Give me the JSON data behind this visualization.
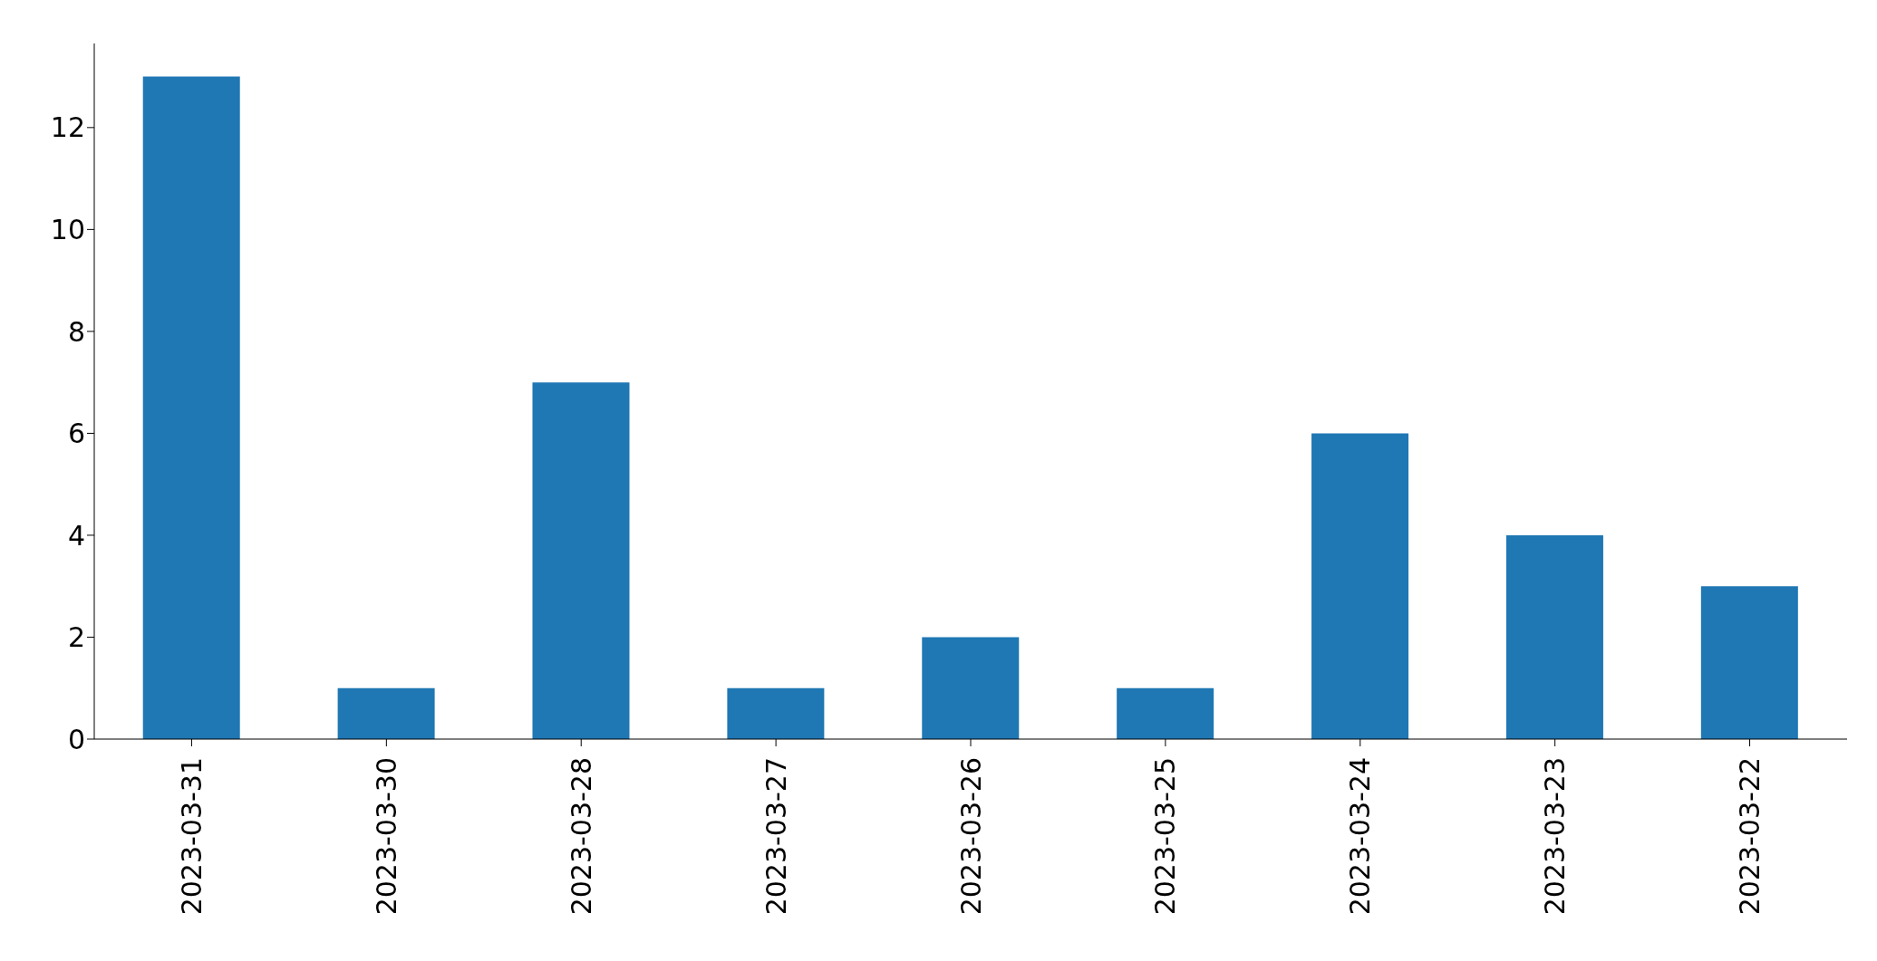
{
  "chart_data": {
    "type": "bar",
    "categories": [
      "2023-03-31",
      "2023-03-30",
      "2023-03-28",
      "2023-03-27",
      "2023-03-26",
      "2023-03-25",
      "2023-03-24",
      "2023-03-23",
      "2023-03-22"
    ],
    "values": [
      13,
      1,
      7,
      1,
      2,
      1,
      6,
      4,
      3
    ],
    "color": "#1f77b4",
    "ylim": [
      0,
      13.65
    ],
    "yticks": [
      0,
      2,
      4,
      6,
      8,
      10,
      12
    ],
    "grid": false,
    "legend": false
  }
}
